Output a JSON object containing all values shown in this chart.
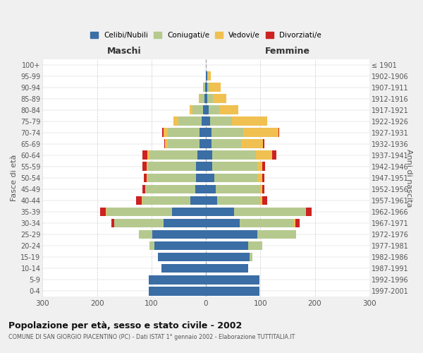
{
  "age_groups": [
    "0-4",
    "5-9",
    "10-14",
    "15-19",
    "20-24",
    "25-29",
    "30-34",
    "35-39",
    "40-44",
    "45-49",
    "50-54",
    "55-59",
    "60-64",
    "65-69",
    "70-74",
    "75-79",
    "80-84",
    "85-89",
    "90-94",
    "95-99",
    "100+"
  ],
  "birth_years": [
    "1997-2001",
    "1992-1996",
    "1987-1991",
    "1982-1986",
    "1977-1981",
    "1972-1976",
    "1967-1971",
    "1962-1966",
    "1957-1961",
    "1952-1956",
    "1947-1951",
    "1942-1946",
    "1937-1941",
    "1932-1936",
    "1927-1931",
    "1922-1926",
    "1917-1921",
    "1912-1916",
    "1907-1911",
    "1902-1906",
    "≤ 1901"
  ],
  "maschi": {
    "celibi": [
      105,
      105,
      82,
      88,
      95,
      98,
      78,
      62,
      28,
      20,
      18,
      18,
      15,
      12,
      12,
      8,
      5,
      3,
      2,
      0,
      0
    ],
    "coniugati": [
      0,
      0,
      0,
      0,
      8,
      25,
      90,
      120,
      88,
      90,
      88,
      88,
      88,
      58,
      58,
      42,
      20,
      8,
      3,
      0,
      0
    ],
    "vedovi": [
      0,
      0,
      0,
      0,
      0,
      0,
      0,
      2,
      2,
      2,
      3,
      3,
      5,
      5,
      8,
      10,
      5,
      2,
      0,
      0,
      0
    ],
    "divorziati": [
      0,
      0,
      0,
      0,
      0,
      0,
      5,
      10,
      10,
      5,
      5,
      8,
      8,
      2,
      2,
      0,
      0,
      0,
      0,
      0,
      0
    ]
  },
  "femmine": {
    "nubili": [
      98,
      98,
      78,
      80,
      78,
      95,
      62,
      52,
      20,
      18,
      15,
      12,
      12,
      10,
      10,
      8,
      5,
      3,
      2,
      2,
      0
    ],
    "coniugate": [
      0,
      0,
      0,
      5,
      25,
      70,
      100,
      130,
      80,
      82,
      80,
      82,
      80,
      55,
      58,
      40,
      20,
      10,
      5,
      2,
      0
    ],
    "vedove": [
      0,
      0,
      0,
      0,
      0,
      0,
      2,
      2,
      3,
      3,
      8,
      10,
      30,
      40,
      65,
      65,
      35,
      25,
      20,
      5,
      0
    ],
    "divorziate": [
      0,
      0,
      0,
      0,
      0,
      0,
      8,
      10,
      10,
      5,
      5,
      5,
      8,
      2,
      2,
      0,
      0,
      0,
      0,
      0,
      0
    ]
  },
  "colors": {
    "celibi": "#3a6ea5",
    "coniugati": "#b5c98e",
    "vedovi": "#f0c050",
    "divorziati": "#cc2222"
  },
  "title": "Popolazione per età, sesso e stato civile - 2002",
  "subtitle": "COMUNE DI SAN GIORGIO PIACENTINO (PC) - Dati ISTAT 1° gennaio 2002 - Elaborazione TUTTITALIA.IT",
  "xlabel_left": "Maschi",
  "xlabel_right": "Femmine",
  "ylabel_left": "Fasce di età",
  "ylabel_right": "Anni di nascita",
  "xlim": 300,
  "bg_color": "#f0f0f0",
  "plot_bg_color": "#ffffff",
  "grid_color": "#cccccc"
}
